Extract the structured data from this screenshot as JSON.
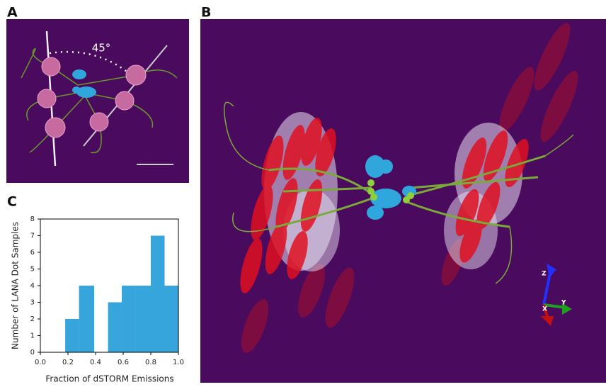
{
  "panels": {
    "a": {
      "label": "A",
      "angle": "45°"
    },
    "b": {
      "label": "B",
      "axes": {
        "z": "Z",
        "y": "Y",
        "x": "X"
      }
    },
    "c": {
      "label": "C"
    }
  },
  "chart_data": {
    "type": "histogram",
    "x_label": "Fraction of dSTORM Emissions",
    "y_label": "Number of LANA Dot Samples",
    "bins": [
      0.18,
      0.28,
      0.39,
      0.49,
      0.59,
      0.69,
      0.8,
      0.9,
      1.0
    ],
    "values": [
      2,
      4,
      0,
      3,
      4,
      4,
      7,
      4
    ],
    "color": "#35a5dc",
    "xlim": [
      0,
      1
    ],
    "ylim": [
      0,
      8
    ],
    "xticks": [
      {
        "value": 0,
        "label": "0.0"
      },
      {
        "value": 0.2,
        "label": "0.2"
      },
      {
        "value": 0.4,
        "label": "0.4"
      },
      {
        "value": 0.6,
        "label": "0.6"
      },
      {
        "value": 0.8,
        "label": "0.8"
      },
      {
        "value": 1,
        "label": "1.0"
      }
    ],
    "yticks": [
      0,
      1,
      2,
      3,
      4,
      5,
      6,
      7,
      8
    ]
  }
}
